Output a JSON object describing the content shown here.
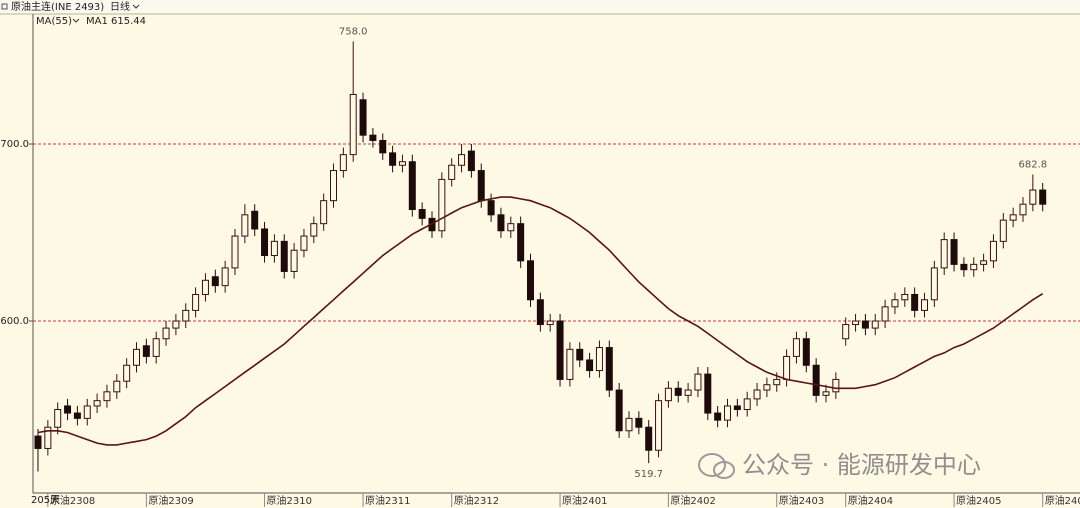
{
  "header": {
    "symbol": "原油主连(INE 2493)",
    "period": "日线"
  },
  "watermark": "公众号 · 能源研发中心",
  "chart_data": {
    "type": "candlestick",
    "indicator": "MA(55)",
    "period_label": "205天",
    "categories": [
      null,
      "原油2308",
      null,
      null,
      null,
      null,
      null,
      null,
      null,
      null,
      null,
      "原油2309",
      null,
      null,
      null,
      null,
      null,
      null,
      null,
      null,
      null,
      null,
      null,
      "原油2310",
      null,
      null,
      null,
      null,
      null,
      null,
      null,
      null,
      null,
      "原油2311",
      null,
      null,
      null,
      null,
      null,
      null,
      null,
      null,
      "原油2312",
      null,
      null,
      null,
      null,
      null,
      null,
      null,
      null,
      null,
      null,
      "原油2401",
      null,
      null,
      null,
      null,
      null,
      null,
      null,
      null,
      null,
      null,
      "原油2402",
      null,
      null,
      null,
      null,
      null,
      null,
      null,
      null,
      null,
      null,
      "原油2403",
      null,
      null,
      null,
      null,
      null,
      null,
      "原油2404",
      null,
      null,
      null,
      null,
      null,
      null,
      null,
      null,
      null,
      null,
      "原油2405",
      null,
      null,
      null,
      null,
      null,
      null,
      null,
      null,
      "原油240"
    ],
    "open": [
      535,
      528,
      540,
      552,
      548,
      545,
      552,
      555,
      560,
      566,
      575,
      586,
      580,
      590,
      596,
      600,
      606,
      615,
      625,
      620,
      630,
      648,
      662,
      652,
      637,
      645,
      628,
      640,
      648,
      655,
      668,
      685,
      694,
      725,
      705,
      702,
      695,
      688,
      690,
      663,
      658,
      651,
      680,
      688,
      696,
      685,
      668,
      660,
      651,
      655,
      634,
      612,
      598,
      600,
      567,
      584,
      578,
      572,
      585,
      561,
      538,
      545,
      540,
      527,
      555,
      562,
      558,
      561,
      570,
      548,
      544,
      552,
      550,
      556,
      561,
      564,
      567,
      580,
      590,
      575,
      558,
      560,
      590,
      598,
      600,
      596,
      600,
      608,
      612,
      615,
      606,
      612,
      630,
      646,
      632,
      629,
      632,
      634,
      645,
      657,
      660,
      666,
      674
    ],
    "high": [
      539,
      544,
      554,
      556,
      552,
      556,
      559,
      564,
      570,
      579,
      588,
      590,
      594,
      600,
      604,
      610,
      619,
      627,
      629,
      634,
      652,
      666,
      666,
      656,
      649,
      649,
      644,
      652,
      659,
      672,
      689,
      698,
      758,
      729,
      709,
      706,
      699,
      694,
      694,
      667,
      662,
      684,
      692,
      700,
      700,
      689,
      672,
      664,
      659,
      659,
      638,
      616,
      604,
      604,
      588,
      588,
      582,
      589,
      589,
      565,
      549,
      549,
      544,
      559,
      566,
      566,
      565,
      574,
      574,
      552,
      556,
      556,
      560,
      565,
      568,
      571,
      584,
      594,
      594,
      579,
      564,
      571,
      602,
      604,
      604,
      604,
      612,
      616,
      619,
      619,
      616,
      634,
      650,
      650,
      636,
      636,
      638,
      649,
      661,
      664,
      670,
      682.8,
      678
    ],
    "low": [
      515,
      524,
      536,
      544,
      541,
      541,
      548,
      551,
      556,
      562,
      571,
      576,
      576,
      586,
      592,
      596,
      602,
      611,
      616,
      616,
      626,
      644,
      648,
      633,
      633,
      624,
      624,
      636,
      644,
      651,
      664,
      681,
      690,
      701,
      698,
      691,
      684,
      684,
      659,
      654,
      647,
      647,
      676,
      684,
      681,
      664,
      656,
      647,
      647,
      630,
      608,
      594,
      594,
      563,
      563,
      574,
      568,
      568,
      557,
      534,
      534,
      536,
      519.7,
      523,
      551,
      554,
      554,
      557,
      544,
      540,
      540,
      546,
      546,
      552,
      557,
      560,
      563,
      576,
      571,
      554,
      554,
      556,
      586,
      594,
      592,
      592,
      596,
      604,
      608,
      602,
      602,
      608,
      626,
      628,
      625,
      625,
      628,
      630,
      641,
      653,
      656,
      662,
      662
    ],
    "close": [
      528,
      540,
      550,
      548,
      545,
      552,
      555,
      560,
      566,
      575,
      584,
      580,
      590,
      596,
      600,
      606,
      615,
      623,
      620,
      630,
      648,
      660,
      652,
      637,
      645,
      628,
      640,
      648,
      655,
      668,
      685,
      694,
      728,
      705,
      702,
      695,
      688,
      690,
      663,
      658,
      651,
      680,
      688,
      694,
      685,
      668,
      660,
      651,
      655,
      634,
      612,
      598,
      600,
      567,
      584,
      578,
      572,
      585,
      561,
      538,
      545,
      540,
      527,
      555,
      562,
      558,
      561,
      570,
      548,
      544,
      552,
      550,
      556,
      561,
      564,
      567,
      580,
      590,
      575,
      558,
      560,
      567,
      598,
      600,
      596,
      600,
      608,
      612,
      615,
      606,
      612,
      630,
      646,
      632,
      629,
      632,
      634,
      645,
      657,
      660,
      666,
      674,
      666
    ],
    "ma": {
      "name": "MA1",
      "color": "#5a1414",
      "values": [
        537,
        538,
        538,
        537,
        535,
        533,
        531,
        530,
        530,
        531,
        532,
        533,
        535,
        538,
        542,
        546,
        551,
        555,
        559,
        563,
        567,
        571,
        575,
        579,
        583,
        587,
        592,
        597,
        602,
        607,
        612,
        617,
        622,
        627,
        632,
        637,
        641,
        645,
        649,
        652,
        655,
        658,
        661,
        664,
        666,
        668,
        669,
        670,
        670,
        669,
        668,
        666,
        664,
        661,
        658,
        654,
        650,
        645,
        640,
        634,
        628,
        622,
        617,
        612,
        607,
        603,
        600,
        597,
        593,
        589,
        585,
        581,
        577,
        574,
        571,
        569,
        567,
        566,
        565,
        564,
        563,
        562,
        562,
        562,
        563,
        564,
        566,
        568,
        571,
        574,
        577,
        580,
        582,
        585,
        587,
        590,
        593,
        596,
        600,
        604,
        608,
        612,
        615.44
      ]
    },
    "up_color": "#3a1010",
    "down_color": "#1e0a0a",
    "ylim": [
      503,
      766
    ],
    "yticks": [
      {
        "value": 600,
        "label": "600.0"
      },
      {
        "value": 700,
        "label": "700.0"
      }
    ],
    "grid": true,
    "grid_color": "#c83a3a",
    "annotations": [
      {
        "value": 758,
        "label": "758.0"
      },
      {
        "value": 519.7,
        "label": "519.7"
      },
      {
        "value": 682.8,
        "label": "682.8"
      }
    ]
  }
}
